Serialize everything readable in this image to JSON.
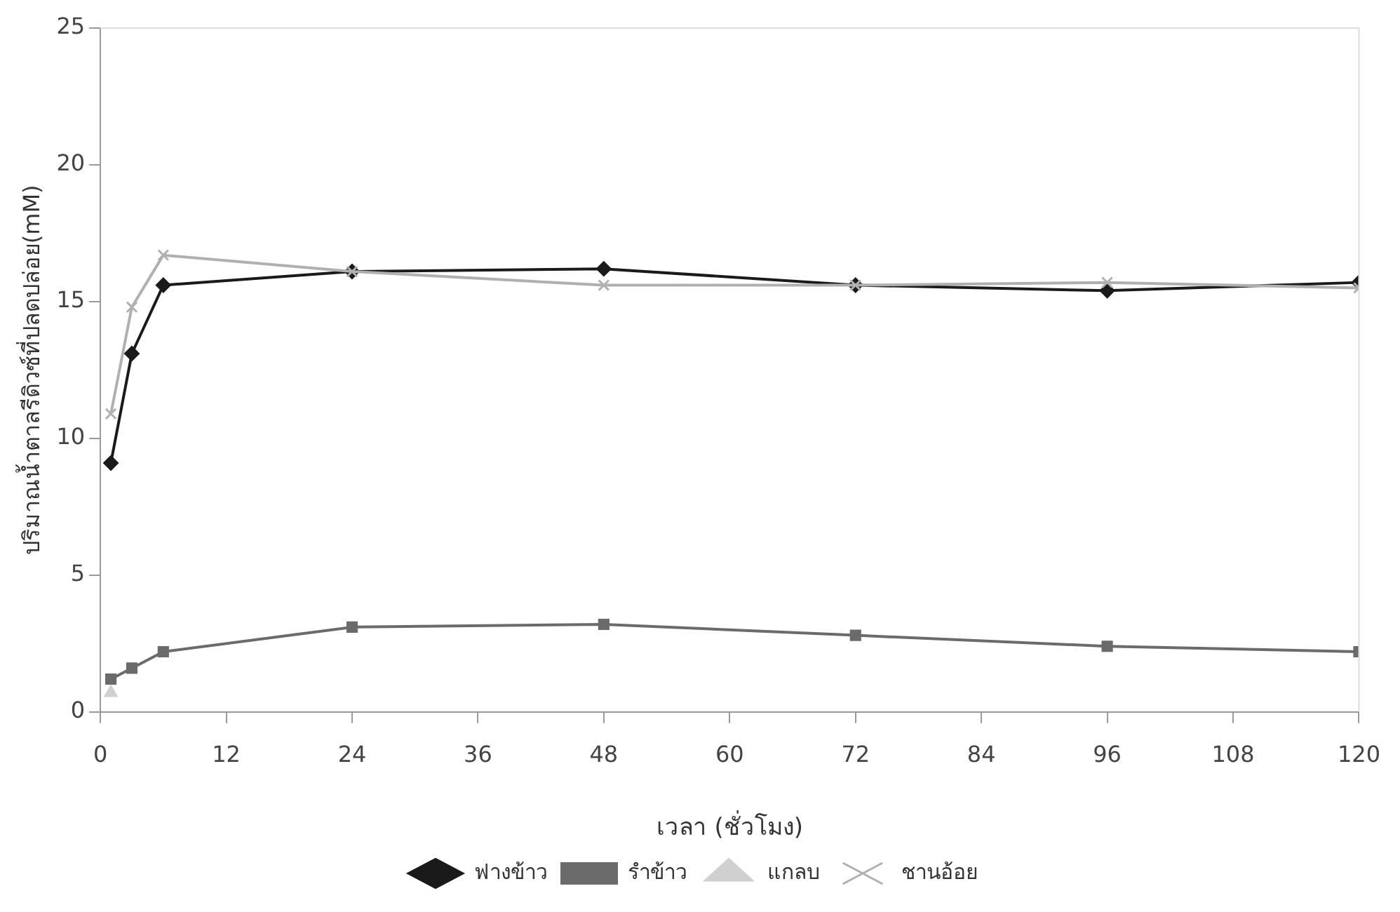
{
  "chart_data": {
    "type": "line",
    "xlabel": "เวลา (ชั่วโมง)",
    "ylabel": "ปริมาณน้ำตาลรีดิวซ์ที่ปลดปล่อย(mM)",
    "x": [
      1,
      3,
      6,
      24,
      48,
      72,
      96,
      120
    ],
    "xlim": [
      0,
      120
    ],
    "xticks": [
      0,
      12,
      24,
      36,
      48,
      60,
      72,
      84,
      96,
      108,
      120
    ],
    "ylim": [
      0,
      25
    ],
    "yticks": [
      0,
      5,
      10,
      15,
      20,
      25
    ],
    "grid": false,
    "legend": "bottom",
    "series": [
      {
        "name": "ฟางข้าว",
        "color": "#1a1a1a",
        "marker": "diamond",
        "values": [
          9.1,
          13.1,
          15.6,
          16.1,
          16.2,
          15.6,
          15.4,
          15.7
        ]
      },
      {
        "name": "รำข้าว",
        "color": "#6b6b6b",
        "marker": "square",
        "values": [
          1.2,
          1.6,
          2.2,
          3.1,
          3.2,
          2.8,
          2.4,
          2.2
        ]
      },
      {
        "name": "แกลบ",
        "color": "#d0d0d0",
        "marker": "triangle",
        "values": [
          0.7,
          null,
          null,
          null,
          null,
          null,
          null,
          null
        ]
      },
      {
        "name": "ชานอ้อย",
        "color": "#b0b0b0",
        "marker": "cross",
        "values": [
          10.9,
          14.8,
          16.7,
          16.1,
          15.6,
          15.6,
          15.7,
          15.5
        ]
      }
    ]
  }
}
